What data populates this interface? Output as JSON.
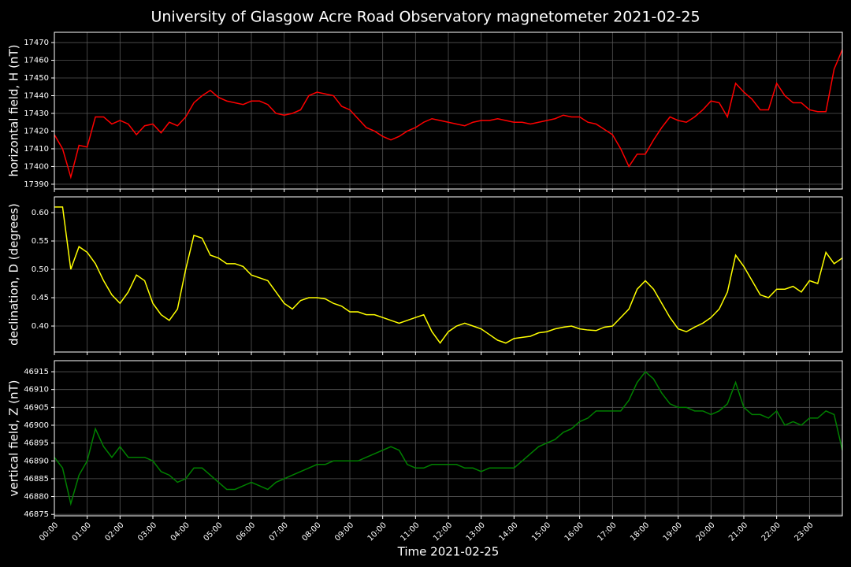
{
  "chart_data": [
    {
      "type": "line",
      "title": "University of Glasgow Acre Road Observatory magnetometer 2021-02-25",
      "y_label": "horizontal field, H (nT)",
      "x": [
        0,
        0.25,
        0.5,
        0.75,
        1,
        1.25,
        1.5,
        1.75,
        2,
        2.25,
        2.5,
        2.75,
        3,
        3.25,
        3.5,
        3.75,
        4,
        4.25,
        4.5,
        4.75,
        5,
        5.25,
        5.5,
        5.75,
        6,
        6.25,
        6.5,
        6.75,
        7,
        7.25,
        7.5,
        7.75,
        8,
        8.25,
        8.5,
        8.75,
        9,
        9.25,
        9.5,
        9.75,
        10,
        10.25,
        10.5,
        10.75,
        11,
        11.25,
        11.5,
        11.75,
        12,
        12.25,
        12.5,
        12.75,
        13,
        13.25,
        13.5,
        13.75,
        14,
        14.25,
        14.5,
        14.75,
        15,
        15.25,
        15.5,
        15.75,
        16,
        16.25,
        16.5,
        16.75,
        17,
        17.25,
        17.5,
        17.75,
        18,
        18.25,
        18.5,
        18.75,
        19,
        19.25,
        19.5,
        19.75,
        20,
        20.25,
        20.5,
        20.75,
        21,
        21.25,
        21.5,
        21.75,
        22,
        22.25,
        22.5,
        22.75,
        23,
        23.25,
        23.5,
        23.75,
        24
      ],
      "series": [
        {
          "color": "#ff0000",
          "values": [
            17418,
            17410,
            17394,
            17412,
            17411,
            17428,
            17428,
            17424,
            17426,
            17424,
            17418,
            17423,
            17424,
            17419,
            17425,
            17423,
            17428,
            17436,
            17440,
            17443,
            17439,
            17437,
            17436,
            17435,
            17437,
            17437,
            17435,
            17430,
            17429,
            17430,
            17432,
            17440,
            17442,
            17441,
            17440,
            17434,
            17432,
            17427,
            17422,
            17420,
            17417,
            17415,
            17417,
            17420,
            17422,
            17425,
            17427,
            17426,
            17425,
            17424,
            17423,
            17425,
            17426,
            17426,
            17427,
            17426,
            17425,
            17425,
            17424,
            17425,
            17426,
            17427,
            17429,
            17428,
            17428,
            17425,
            17424,
            17421,
            17418,
            17410,
            17400,
            17407,
            17407,
            17415,
            17422,
            17428,
            17426,
            17425,
            17428,
            17432,
            17437,
            17436,
            17428,
            17447,
            17442,
            17438,
            17432,
            17432,
            17447,
            17440,
            17436,
            17436,
            17432,
            17431,
            17431,
            17455,
            17466
          ]
        }
      ],
      "xlim": [
        0,
        24
      ],
      "ylim": [
        17387.3,
        17475.8
      ],
      "yticks": [
        17390,
        17400,
        17410,
        17420,
        17430,
        17440,
        17450,
        17460,
        17470
      ],
      "grid": true
    },
    {
      "type": "line",
      "y_label": "declination, D (degrees)",
      "x": [
        0,
        0.25,
        0.5,
        0.75,
        1,
        1.25,
        1.5,
        1.75,
        2,
        2.25,
        2.5,
        2.75,
        3,
        3.25,
        3.5,
        3.75,
        4,
        4.25,
        4.5,
        4.75,
        5,
        5.25,
        5.5,
        5.75,
        6,
        6.25,
        6.5,
        6.75,
        7,
        7.25,
        7.5,
        7.75,
        8,
        8.25,
        8.5,
        8.75,
        9,
        9.25,
        9.5,
        9.75,
        10,
        10.25,
        10.5,
        10.75,
        11,
        11.25,
        11.5,
        11.75,
        12,
        12.25,
        12.5,
        12.75,
        13,
        13.25,
        13.5,
        13.75,
        14,
        14.25,
        14.5,
        14.75,
        15,
        15.25,
        15.5,
        15.75,
        16,
        16.25,
        16.5,
        16.75,
        17,
        17.25,
        17.5,
        17.75,
        18,
        18.25,
        18.5,
        18.75,
        19,
        19.25,
        19.5,
        19.75,
        20,
        20.25,
        20.5,
        20.75,
        21,
        21.25,
        21.5,
        21.75,
        22,
        22.25,
        22.5,
        22.75,
        23,
        23.25,
        23.5,
        23.75,
        24
      ],
      "series": [
        {
          "color": "#ffff00",
          "values": [
            0.61,
            0.61,
            0.5,
            0.54,
            0.53,
            0.51,
            0.48,
            0.455,
            0.44,
            0.46,
            0.49,
            0.48,
            0.44,
            0.42,
            0.41,
            0.43,
            0.5,
            0.56,
            0.555,
            0.525,
            0.52,
            0.51,
            0.51,
            0.505,
            0.49,
            0.485,
            0.48,
            0.46,
            0.44,
            0.43,
            0.445,
            0.45,
            0.45,
            0.448,
            0.44,
            0.435,
            0.425,
            0.425,
            0.42,
            0.42,
            0.415,
            0.41,
            0.405,
            0.41,
            0.415,
            0.42,
            0.39,
            0.37,
            0.39,
            0.4,
            0.405,
            0.4,
            0.395,
            0.385,
            0.375,
            0.37,
            0.378,
            0.38,
            0.382,
            0.388,
            0.39,
            0.395,
            0.398,
            0.4,
            0.395,
            0.393,
            0.392,
            0.398,
            0.4,
            0.415,
            0.43,
            0.465,
            0.48,
            0.465,
            0.44,
            0.415,
            0.395,
            0.39,
            0.398,
            0.405,
            0.415,
            0.43,
            0.46,
            0.525,
            0.505,
            0.48,
            0.455,
            0.45,
            0.465,
            0.465,
            0.47,
            0.46,
            0.48,
            0.475,
            0.53,
            0.51,
            0.52
          ]
        }
      ],
      "xlim": [
        0,
        24
      ],
      "ylim": [
        0.3542,
        0.6278
      ],
      "yticks": [
        {
          "value": 0.4,
          "label": "0.40"
        },
        {
          "value": 0.45,
          "label": "0.45"
        },
        {
          "value": 0.5,
          "label": "0.50"
        },
        {
          "value": 0.55,
          "label": "0.55"
        },
        {
          "value": 0.6,
          "label": "0.60"
        }
      ],
      "grid": true
    },
    {
      "type": "line",
      "y_label": "vertical field, Z (nT)",
      "x_label": "Time 2021-02-25",
      "x": [
        0,
        0.25,
        0.5,
        0.75,
        1,
        1.25,
        1.5,
        1.75,
        2,
        2.25,
        2.5,
        2.75,
        3,
        3.25,
        3.5,
        3.75,
        4,
        4.25,
        4.5,
        4.75,
        5,
        5.25,
        5.5,
        5.75,
        6,
        6.25,
        6.5,
        6.75,
        7,
        7.25,
        7.5,
        7.75,
        8,
        8.25,
        8.5,
        8.75,
        9,
        9.25,
        9.5,
        9.75,
        10,
        10.25,
        10.5,
        10.75,
        11,
        11.25,
        11.5,
        11.75,
        12,
        12.25,
        12.5,
        12.75,
        13,
        13.25,
        13.5,
        13.75,
        14,
        14.25,
        14.5,
        14.75,
        15,
        15.25,
        15.5,
        15.75,
        16,
        16.25,
        16.5,
        16.75,
        17,
        17.25,
        17.5,
        17.75,
        18,
        18.25,
        18.5,
        18.75,
        19,
        19.25,
        19.5,
        19.75,
        20,
        20.25,
        20.5,
        20.75,
        21,
        21.25,
        21.5,
        21.75,
        22,
        22.25,
        22.5,
        22.75,
        23,
        23.25,
        23.5,
        23.75,
        24
      ],
      "series": [
        {
          "color": "#008000",
          "values": [
            46891,
            46888,
            46878,
            46886,
            46890,
            46899,
            46894,
            46891,
            46894,
            46891,
            46891,
            46891,
            46890,
            46887,
            46886,
            46884,
            46885,
            46888,
            46888,
            46886,
            46884,
            46882,
            46882,
            46883,
            46884,
            46883,
            46882,
            46884,
            46885,
            46886,
            46887,
            46888,
            46889,
            46889,
            46890,
            46890,
            46890,
            46890,
            46891,
            46892,
            46893,
            46894,
            46893,
            46889,
            46888,
            46888,
            46889,
            46889,
            46889,
            46889,
            46888,
            46888,
            46887,
            46888,
            46888,
            46888,
            46888,
            46890,
            46892,
            46894,
            46895,
            46896,
            46898,
            46899,
            46901,
            46902,
            46904,
            46904,
            46904,
            46904,
            46907,
            46912,
            46915,
            46913,
            46909,
            46906,
            46905,
            46905,
            46904,
            46904,
            46903,
            46904,
            46906,
            46912,
            46905,
            46903,
            46903,
            46902,
            46904,
            46900,
            46901,
            46900,
            46902,
            46902,
            46904,
            46903,
            46893
          ]
        }
      ],
      "xlim": [
        0,
        24
      ],
      "ylim": [
        46874.6,
        46918.1
      ],
      "yticks": [
        46875,
        46880,
        46885,
        46890,
        46895,
        46900,
        46905,
        46910,
        46915
      ],
      "xticks": [
        {
          "value": 0,
          "label": "00:00"
        },
        {
          "value": 1,
          "label": "01:00"
        },
        {
          "value": 2,
          "label": "02:00"
        },
        {
          "value": 3,
          "label": "03:00"
        },
        {
          "value": 4,
          "label": "04:00"
        },
        {
          "value": 5,
          "label": "05:00"
        },
        {
          "value": 6,
          "label": "06:00"
        },
        {
          "value": 7,
          "label": "07:00"
        },
        {
          "value": 8,
          "label": "08:00"
        },
        {
          "value": 9,
          "label": "09:00"
        },
        {
          "value": 10,
          "label": "10:00"
        },
        {
          "value": 11,
          "label": "11:00"
        },
        {
          "value": 12,
          "label": "12:00"
        },
        {
          "value": 13,
          "label": "13:00"
        },
        {
          "value": 14,
          "label": "14:00"
        },
        {
          "value": 15,
          "label": "15:00"
        },
        {
          "value": 16,
          "label": "16:00"
        },
        {
          "value": 17,
          "label": "17:00"
        },
        {
          "value": 18,
          "label": "18:00"
        },
        {
          "value": 19,
          "label": "19:00"
        },
        {
          "value": 20,
          "label": "20:00"
        },
        {
          "value": 21,
          "label": "21:00"
        },
        {
          "value": 22,
          "label": "22:00"
        },
        {
          "value": 23,
          "label": "23:00"
        }
      ],
      "grid": true
    }
  ]
}
